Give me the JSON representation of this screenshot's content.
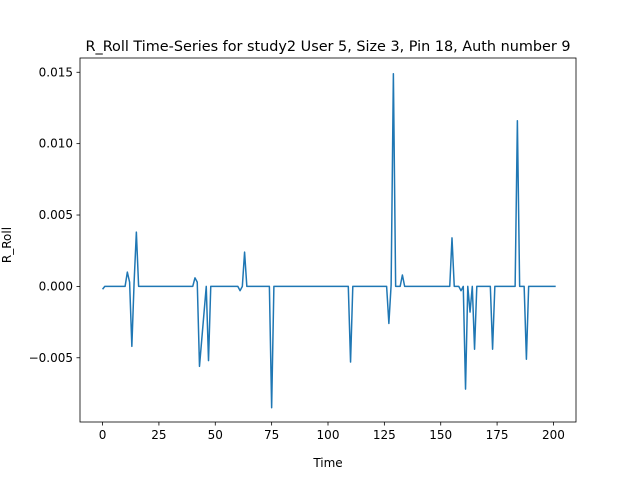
{
  "chart_data": {
    "type": "line",
    "title": "R_Roll Time-Series for study2 User 5, Size 3, Pin 18, Auth number 9",
    "xlabel": "Time",
    "ylabel": "R_Roll",
    "xlim": [
      -10,
      210
    ],
    "ylim": [
      -0.0095,
      0.016
    ],
    "xticks": [
      0,
      25,
      50,
      75,
      100,
      125,
      150,
      175,
      200
    ],
    "xtick_labels": [
      "0",
      "25",
      "50",
      "75",
      "100",
      "125",
      "150",
      "175",
      "200"
    ],
    "yticks": [
      -0.005,
      0.0,
      0.005,
      0.01,
      0.015
    ],
    "ytick_labels": [
      "−0.005",
      "0.000",
      "0.005",
      "0.010",
      "0.015"
    ],
    "grid": false,
    "series": [
      {
        "color": "#1f77b4",
        "x": [
          0,
          1,
          10,
          11,
          12,
          13,
          14,
          15,
          16,
          40,
          41,
          42,
          43,
          46,
          47,
          48,
          60,
          61,
          62,
          63,
          64,
          74,
          75,
          76,
          109,
          110,
          111,
          126,
          127,
          128,
          129,
          130,
          132,
          133,
          134,
          154,
          155,
          156,
          158,
          159,
          160,
          161,
          162,
          163,
          164,
          165,
          166,
          172,
          173,
          174,
          183,
          184,
          185,
          187,
          188,
          189,
          201
        ],
        "y": [
          -0.0002,
          0,
          0,
          0.001,
          0.0003,
          -0.0042,
          0.0003,
          0.0038,
          0,
          0,
          0.0006,
          0.0003,
          -0.0056,
          0,
          -0.0052,
          0,
          0,
          -0.0003,
          0,
          0.0024,
          0,
          0,
          -0.0085,
          0,
          0,
          -0.0053,
          0,
          0,
          -0.0026,
          0.0001,
          0.0149,
          0,
          0,
          0.0008,
          0,
          0,
          0.0034,
          0,
          0,
          -0.0003,
          0,
          -0.0072,
          0,
          -0.0018,
          0,
          -0.0044,
          0,
          0,
          -0.0044,
          0,
          0,
          0.0116,
          0,
          0,
          -0.0051,
          0,
          0
        ]
      }
    ]
  }
}
